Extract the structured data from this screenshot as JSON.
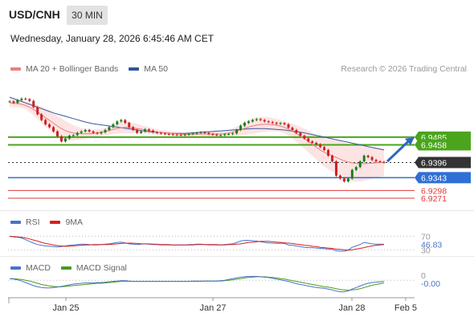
{
  "header": {
    "symbol": "USD/CNH",
    "timeframe": "30 MIN",
    "datetime": "Wednesday, January 28, 2026 6:45:46 AM CET"
  },
  "legend_main": {
    "items": [
      {
        "label": "MA 20 + Bollinger Bands",
        "color": "#f07c7c"
      },
      {
        "label": "MA 50",
        "color": "#2f5597"
      }
    ],
    "credit": "Research © 2026 Trading Central"
  },
  "legend_rsi": {
    "items": [
      {
        "label": "RSI",
        "color": "#4a72c9"
      },
      {
        "label": "9MA",
        "color": "#d62020"
      }
    ]
  },
  "legend_macd": {
    "items": [
      {
        "label": "MACD",
        "color": "#4a72c9"
      },
      {
        "label": "MACD Signal",
        "color": "#4a9a1f"
      }
    ]
  },
  "chart_data": [
    {
      "type": "line",
      "panel": "price",
      "x_ticks": [
        "Jan 25",
        "Jan 27",
        "Jan 28",
        "Feb 5"
      ],
      "levels": [
        {
          "value": "6.9485",
          "kind": "resistance",
          "color": "#4aa51c"
        },
        {
          "value": "6.9458",
          "kind": "resistance",
          "color": "#4aa51c"
        },
        {
          "value": "6.9396",
          "kind": "last",
          "color": "#333333"
        },
        {
          "value": "6.9343",
          "kind": "support",
          "color": "#2f6fd6"
        },
        {
          "value": "6.9298",
          "kind": "support",
          "color": "#e03a3a"
        },
        {
          "value": "6.9271",
          "kind": "support",
          "color": "#e03a3a"
        }
      ],
      "ylim": [
        6.924,
        6.969
      ],
      "close": [
        6.961,
        6.9605,
        6.9615,
        6.962,
        6.9618,
        6.9612,
        6.959,
        6.9565,
        6.9545,
        6.953,
        6.952,
        6.9505,
        6.9488,
        6.947,
        6.948,
        6.949,
        6.9492,
        6.95,
        6.9505,
        6.951,
        6.9505,
        6.95,
        6.9498,
        6.9502,
        6.951,
        6.952,
        6.953,
        6.954,
        6.9545,
        6.9535,
        6.952,
        6.951,
        6.95,
        6.9505,
        6.9512,
        6.9508,
        6.9502,
        6.95,
        6.9498,
        6.9496,
        6.9495,
        6.9494,
        6.9493,
        6.9492,
        6.9494,
        6.9496,
        6.9498,
        6.95,
        6.9502,
        6.95,
        6.9496,
        6.9494,
        6.9492,
        6.9492,
        6.9495,
        6.9496,
        6.9498,
        6.951,
        6.9525,
        6.9535,
        6.954,
        6.9545,
        6.9548,
        6.9545,
        6.954,
        6.9538,
        6.9535,
        6.9532,
        6.9534,
        6.953,
        6.9518,
        6.951,
        6.95,
        6.949,
        6.948,
        6.947,
        6.9465,
        6.946,
        6.945,
        6.944,
        6.942,
        6.94,
        6.935,
        6.934,
        6.933,
        6.934,
        6.937,
        6.938,
        6.94,
        6.942,
        6.9415,
        6.9405,
        6.94,
        6.9398,
        6.9396
      ],
      "ma20": [
        6.9605,
        6.9604,
        6.9603,
        6.96,
        6.9596,
        6.959,
        6.9582,
        6.9573,
        6.9563,
        6.9553,
        6.9544,
        6.9534,
        6.9524,
        6.9515,
        6.9508,
        6.9503,
        6.95,
        6.9498,
        6.9497,
        6.9497,
        6.9497,
        6.9498,
        6.95,
        6.9502,
        6.9505,
        6.9508,
        6.9512,
        6.9515,
        6.9518,
        6.9519,
        6.9519,
        6.9517,
        6.9515,
        6.9513,
        6.9511,
        6.9508,
        6.9505,
        6.9503,
        6.9501,
        6.95,
        6.9499,
        6.9498,
        6.9497,
        6.9496,
        6.9495,
        6.9495,
        6.9495,
        6.9495,
        6.9496,
        6.9496,
        6.9496,
        6.9496,
        6.9496,
        6.9496,
        6.9497,
        6.9499,
        6.9502,
        6.9506,
        6.9511,
        6.9516,
        6.952,
        6.9524,
        6.9527,
        6.9529,
        6.953,
        6.953,
        6.9529,
        6.9527,
        6.9524,
        6.9519,
        6.9513,
        6.9506,
        6.9498,
        6.9489,
        6.948,
        6.947,
        6.946,
        6.945,
        6.944,
        6.9432,
        6.9425,
        6.942,
        6.9414,
        6.9408,
        6.9402,
        6.9398,
        6.9395,
        6.9393,
        6.9392,
        6.9392,
        6.9393,
        6.9394,
        6.9395,
        6.9396,
        6.9397
      ],
      "ma50": [
        6.9625,
        6.962,
        6.9615,
        6.961,
        6.9605,
        6.96,
        6.9595,
        6.959,
        6.9585,
        6.958,
        6.9575,
        6.957,
        6.9566,
        6.9562,
        6.9558,
        6.9554,
        6.955,
        6.9546,
        6.9542,
        6.9538,
        6.9535,
        6.9532,
        6.953,
        6.9528,
        6.9526,
        6.9524,
        6.9522,
        6.952,
        6.9518,
        6.9516,
        6.9514,
        6.9512,
        6.951,
        6.9508,
        6.9506,
        6.9504,
        6.9503,
        6.9502,
        6.9501,
        6.95,
        6.9499,
        6.9498,
        6.9498,
        6.9498,
        6.9498,
        6.9499,
        6.95,
        6.9501,
        6.9502,
        6.9503,
        6.9504,
        6.9505,
        6.9506,
        6.9507,
        6.9508,
        6.9509,
        6.951,
        6.9511,
        6.9512,
        6.9513,
        6.9514,
        6.9515,
        6.9515,
        6.9515,
        6.9515,
        6.9514,
        6.9513,
        6.9512,
        6.9511,
        6.951,
        6.9508,
        6.9506,
        6.9504,
        6.9502,
        6.95,
        6.9497,
        6.9494,
        6.9491,
        6.9488,
        6.9485,
        6.9482,
        6.9479,
        6.9476,
        6.9473,
        6.947,
        6.9467,
        6.9464,
        6.9461,
        6.9458,
        6.9455,
        6.9452,
        6.9449,
        6.9446,
        6.9443,
        6.944
      ],
      "bb_width": [
        0.003,
        0.0028,
        0.0027,
        0.0026,
        0.0028,
        0.0032,
        0.004,
        0.005,
        0.0058,
        0.0064,
        0.0068,
        0.007,
        0.0072,
        0.0072,
        0.0068,
        0.0062,
        0.0054,
        0.0046,
        0.004,
        0.0035,
        0.003,
        0.0027,
        0.0025,
        0.0024,
        0.0025,
        0.0028,
        0.0032,
        0.0036,
        0.004,
        0.0042,
        0.004,
        0.0036,
        0.0032,
        0.0028,
        0.0026,
        0.0024,
        0.0022,
        0.002,
        0.0018,
        0.0017,
        0.0016,
        0.0015,
        0.0014,
        0.0014,
        0.0014,
        0.0015,
        0.0016,
        0.0017,
        0.0018,
        0.0018,
        0.0018,
        0.0018,
        0.0018,
        0.0018,
        0.0019,
        0.0022,
        0.0027,
        0.0033,
        0.004,
        0.0046,
        0.005,
        0.0053,
        0.0055,
        0.0055,
        0.0053,
        0.005,
        0.0047,
        0.0044,
        0.0042,
        0.0042,
        0.0046,
        0.0052,
        0.0058,
        0.0064,
        0.007,
        0.0076,
        0.0082,
        0.0088,
        0.0094,
        0.01,
        0.0106,
        0.0112,
        0.0118,
        0.0124,
        0.0128,
        0.013,
        0.013,
        0.0128,
        0.0125,
        0.012,
        0.0115,
        0.011,
        0.0105,
        0.01,
        0.0096
      ]
    },
    {
      "type": "line",
      "panel": "rsi",
      "levels": [
        "70",
        "46.83",
        "30"
      ],
      "ylim": [
        20,
        80
      ],
      "rsi": [
        70,
        68,
        67,
        65,
        60,
        55,
        50,
        46,
        44,
        42,
        41,
        40,
        39,
        40,
        42,
        44,
        45,
        46,
        47,
        47,
        46,
        45,
        45,
        46,
        47,
        48,
        50,
        52,
        53,
        51,
        48,
        47,
        46,
        47,
        48,
        47,
        46,
        46,
        45,
        45,
        45,
        45,
        45,
        45,
        45,
        46,
        46,
        47,
        47,
        46,
        45,
        45,
        45,
        45,
        46,
        47,
        48,
        52,
        56,
        58,
        58,
        57,
        56,
        54,
        52,
        51,
        50,
        49,
        50,
        49,
        45,
        44,
        42,
        40,
        38,
        37,
        37,
        36,
        35,
        34,
        33,
        32,
        28,
        27,
        27,
        30,
        38,
        42,
        46,
        52,
        50,
        48,
        47,
        47,
        46.83
      ],
      "ma9": [
        69,
        69,
        68,
        67,
        65,
        62,
        59,
        56,
        52,
        49,
        47,
        45,
        43,
        42,
        41,
        41,
        42,
        43,
        44,
        45,
        45,
        46,
        46,
        46,
        46,
        46,
        47,
        48,
        49,
        50,
        50,
        50,
        49,
        48,
        48,
        48,
        47,
        47,
        46,
        46,
        46,
        45,
        45,
        45,
        45,
        45,
        45,
        46,
        46,
        46,
        46,
        46,
        46,
        45,
        45,
        46,
        46,
        47,
        48,
        50,
        52,
        53,
        54,
        55,
        55,
        55,
        54,
        53,
        52,
        51,
        50,
        49,
        47,
        46,
        44,
        43,
        41,
        40,
        38,
        37,
        36,
        35,
        33,
        32,
        31,
        30,
        31,
        33,
        35,
        37,
        40,
        42,
        44,
        45,
        46
      ]
    },
    {
      "type": "line",
      "panel": "macd",
      "levels": [
        "0",
        "-0.00"
      ],
      "macd": [
        0.4,
        0.3,
        0.1,
        -0.2,
        -0.6,
        -1.0,
        -1.4,
        -1.7,
        -1.9,
        -2.0,
        -2.0,
        -1.9,
        -1.8,
        -1.6,
        -1.4,
        -1.2,
        -1.0,
        -0.9,
        -0.8,
        -0.7,
        -0.7,
        -0.7,
        -0.6,
        -0.6,
        -0.5,
        -0.4,
        -0.3,
        -0.2,
        -0.1,
        -0.1,
        -0.2,
        -0.3,
        -0.3,
        -0.3,
        -0.3,
        -0.3,
        -0.3,
        -0.3,
        -0.3,
        -0.3,
        -0.3,
        -0.3,
        -0.3,
        -0.3,
        -0.3,
        -0.3,
        -0.2,
        -0.2,
        -0.2,
        -0.2,
        -0.2,
        -0.2,
        -0.2,
        -0.1,
        0.0,
        0.2,
        0.4,
        0.6,
        0.8,
        0.9,
        1.0,
        1.0,
        1.0,
        0.9,
        0.8,
        0.7,
        0.5,
        0.3,
        0.1,
        -0.1,
        -0.3,
        -0.6,
        -0.9,
        -1.1,
        -1.3,
        -1.5,
        -1.7,
        -1.9,
        -2.0,
        -2.1,
        -2.3,
        -2.5,
        -2.8,
        -3.0,
        -3.0,
        -2.8,
        -2.3,
        -1.9,
        -1.5,
        -1.1,
        -0.8,
        -0.6,
        -0.5,
        -0.4,
        -0.3
      ],
      "signal": [
        0.4,
        0.4,
        0.3,
        0.2,
        0.0,
        -0.2,
        -0.5,
        -0.8,
        -1.1,
        -1.3,
        -1.5,
        -1.6,
        -1.7,
        -1.7,
        -1.6,
        -1.5,
        -1.4,
        -1.3,
        -1.2,
        -1.1,
        -1.0,
        -0.9,
        -0.8,
        -0.8,
        -0.7,
        -0.6,
        -0.5,
        -0.4,
        -0.3,
        -0.3,
        -0.3,
        -0.3,
        -0.3,
        -0.3,
        -0.3,
        -0.3,
        -0.3,
        -0.3,
        -0.3,
        -0.3,
        -0.3,
        -0.3,
        -0.3,
        -0.3,
        -0.3,
        -0.3,
        -0.3,
        -0.3,
        -0.3,
        -0.2,
        -0.2,
        -0.2,
        -0.2,
        -0.2,
        -0.1,
        0.0,
        0.1,
        0.3,
        0.4,
        0.6,
        0.7,
        0.8,
        0.9,
        0.9,
        0.9,
        0.8,
        0.7,
        0.6,
        0.4,
        0.3,
        0.1,
        -0.1,
        -0.3,
        -0.5,
        -0.7,
        -0.9,
        -1.1,
        -1.3,
        -1.5,
        -1.7,
        -1.8,
        -2.0,
        -2.2,
        -2.4,
        -2.5,
        -2.6,
        -2.5,
        -2.4,
        -2.2,
        -1.9,
        -1.6,
        -1.3,
        -1.1,
        -0.9,
        -0.7
      ]
    }
  ]
}
